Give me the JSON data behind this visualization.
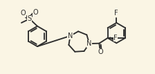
{
  "bg_color": "#faf5e4",
  "line_color": "#2d2d2d",
  "lw": 1.35,
  "fs": 7.0,
  "figsize": [
    2.24,
    1.07
  ],
  "dpi": 100,
  "xlim": [
    -0.5,
    10.5
  ],
  "ylim": [
    0.0,
    4.8
  ]
}
